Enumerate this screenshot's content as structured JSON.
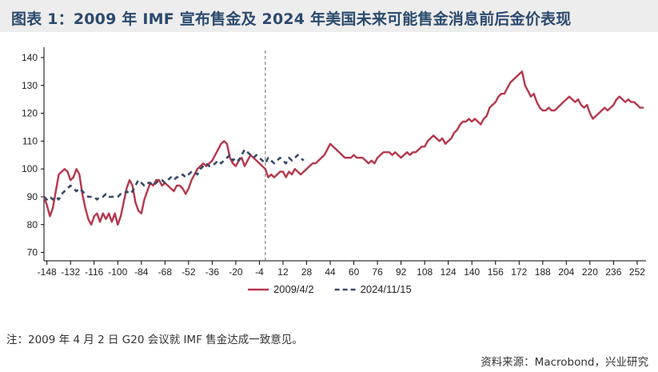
{
  "header": {
    "title": "图表 1：2009 年 IMF 宣布售金及 2024 年美国未来可能售金消息前后金价表现"
  },
  "chart_data": {
    "type": "line",
    "title": "图表 1：2009 年 IMF 宣布售金及 2024 年美国未来可能售金消息前后金价表现",
    "xlabel": "",
    "ylabel": "",
    "xlim": [
      -150,
      258
    ],
    "ylim": [
      67,
      142
    ],
    "x_ticks": [
      -148,
      -132,
      -116,
      -100,
      -84,
      -68,
      -52,
      -36,
      -20,
      -4,
      12,
      28,
      44,
      60,
      76,
      92,
      108,
      124,
      140,
      156,
      172,
      188,
      204,
      220,
      236,
      252
    ],
    "y_ticks": [
      70,
      80,
      90,
      100,
      110,
      120,
      130,
      140
    ],
    "event_line_x": 0,
    "legend_position": "bottom",
    "grid": false,
    "series": [
      {
        "name": "2009/4/2",
        "color": "#b5374b",
        "style": "solid",
        "points": [
          [
            -150,
            90
          ],
          [
            -148,
            87
          ],
          [
            -146,
            83
          ],
          [
            -144,
            86
          ],
          [
            -142,
            92
          ],
          [
            -140,
            98
          ],
          [
            -138,
            99
          ],
          [
            -136,
            100
          ],
          [
            -134,
            99
          ],
          [
            -132,
            96
          ],
          [
            -130,
            97
          ],
          [
            -128,
            100
          ],
          [
            -126,
            98
          ],
          [
            -124,
            91
          ],
          [
            -122,
            86
          ],
          [
            -120,
            82
          ],
          [
            -118,
            80
          ],
          [
            -116,
            83
          ],
          [
            -114,
            84
          ],
          [
            -112,
            81
          ],
          [
            -110,
            84
          ],
          [
            -108,
            82
          ],
          [
            -106,
            84
          ],
          [
            -104,
            81
          ],
          [
            -102,
            84
          ],
          [
            -100,
            80
          ],
          [
            -98,
            83
          ],
          [
            -96,
            88
          ],
          [
            -94,
            93
          ],
          [
            -92,
            96
          ],
          [
            -90,
            94
          ],
          [
            -88,
            88
          ],
          [
            -86,
            85
          ],
          [
            -84,
            84
          ],
          [
            -82,
            89
          ],
          [
            -80,
            92
          ],
          [
            -78,
            95
          ],
          [
            -76,
            94
          ],
          [
            -74,
            96
          ],
          [
            -72,
            96
          ],
          [
            -70,
            94
          ],
          [
            -68,
            95
          ],
          [
            -66,
            94
          ],
          [
            -64,
            93
          ],
          [
            -62,
            92
          ],
          [
            -60,
            94
          ],
          [
            -58,
            94
          ],
          [
            -56,
            93
          ],
          [
            -54,
            91
          ],
          [
            -52,
            93
          ],
          [
            -50,
            96
          ],
          [
            -48,
            98
          ],
          [
            -46,
            100
          ],
          [
            -44,
            101
          ],
          [
            -42,
            102
          ],
          [
            -40,
            101
          ],
          [
            -38,
            102
          ],
          [
            -36,
            103
          ],
          [
            -34,
            105
          ],
          [
            -32,
            107
          ],
          [
            -30,
            109
          ],
          [
            -28,
            110
          ],
          [
            -26,
            109
          ],
          [
            -24,
            104
          ],
          [
            -22,
            102
          ],
          [
            -20,
            101
          ],
          [
            -18,
            103
          ],
          [
            -16,
            104
          ],
          [
            -14,
            101
          ],
          [
            -12,
            103
          ],
          [
            -10,
            105
          ],
          [
            -8,
            104
          ],
          [
            -6,
            103
          ],
          [
            -4,
            102
          ],
          [
            -2,
            101
          ],
          [
            0,
            100
          ],
          [
            2,
            97
          ],
          [
            4,
            98
          ],
          [
            6,
            97
          ],
          [
            8,
            98
          ],
          [
            10,
            99
          ],
          [
            12,
            99
          ],
          [
            14,
            97
          ],
          [
            16,
            99
          ],
          [
            18,
            98
          ],
          [
            20,
            100
          ],
          [
            22,
            99
          ],
          [
            24,
            98
          ],
          [
            26,
            99
          ],
          [
            28,
            100
          ],
          [
            30,
            101
          ],
          [
            32,
            102
          ],
          [
            34,
            102
          ],
          [
            36,
            103
          ],
          [
            38,
            104
          ],
          [
            40,
            105
          ],
          [
            42,
            107
          ],
          [
            44,
            109
          ],
          [
            46,
            108
          ],
          [
            48,
            107
          ],
          [
            50,
            106
          ],
          [
            52,
            105
          ],
          [
            54,
            104
          ],
          [
            56,
            104
          ],
          [
            58,
            104
          ],
          [
            60,
            105
          ],
          [
            62,
            104
          ],
          [
            64,
            104
          ],
          [
            66,
            104
          ],
          [
            68,
            103
          ],
          [
            70,
            102
          ],
          [
            72,
            103
          ],
          [
            74,
            102
          ],
          [
            76,
            104
          ],
          [
            78,
            105
          ],
          [
            80,
            106
          ],
          [
            82,
            106
          ],
          [
            84,
            106
          ],
          [
            86,
            105
          ],
          [
            88,
            106
          ],
          [
            90,
            105
          ],
          [
            92,
            104
          ],
          [
            94,
            105
          ],
          [
            96,
            106
          ],
          [
            98,
            105
          ],
          [
            100,
            106
          ],
          [
            102,
            106
          ],
          [
            104,
            107
          ],
          [
            106,
            108
          ],
          [
            108,
            108
          ],
          [
            110,
            110
          ],
          [
            112,
            111
          ],
          [
            114,
            112
          ],
          [
            116,
            111
          ],
          [
            118,
            110
          ],
          [
            120,
            111
          ],
          [
            122,
            109
          ],
          [
            124,
            110
          ],
          [
            126,
            111
          ],
          [
            128,
            113
          ],
          [
            130,
            114
          ],
          [
            132,
            116
          ],
          [
            134,
            117
          ],
          [
            136,
            117
          ],
          [
            138,
            118
          ],
          [
            140,
            117
          ],
          [
            142,
            118
          ],
          [
            144,
            117
          ],
          [
            146,
            116
          ],
          [
            148,
            118
          ],
          [
            150,
            119
          ],
          [
            152,
            122
          ],
          [
            154,
            123
          ],
          [
            156,
            124
          ],
          [
            158,
            126
          ],
          [
            160,
            127
          ],
          [
            162,
            127
          ],
          [
            164,
            129
          ],
          [
            166,
            131
          ],
          [
            168,
            132
          ],
          [
            170,
            133
          ],
          [
            172,
            134
          ],
          [
            174,
            135
          ],
          [
            176,
            130
          ],
          [
            178,
            128
          ],
          [
            180,
            126
          ],
          [
            182,
            127
          ],
          [
            184,
            124
          ],
          [
            186,
            122
          ],
          [
            188,
            121
          ],
          [
            190,
            121
          ],
          [
            192,
            122
          ],
          [
            194,
            121
          ],
          [
            196,
            121
          ],
          [
            198,
            122
          ],
          [
            200,
            123
          ],
          [
            202,
            124
          ],
          [
            204,
            125
          ],
          [
            206,
            126
          ],
          [
            208,
            125
          ],
          [
            210,
            124
          ],
          [
            212,
            125
          ],
          [
            214,
            123
          ],
          [
            216,
            122
          ],
          [
            218,
            123
          ],
          [
            220,
            120
          ],
          [
            222,
            118
          ],
          [
            224,
            119
          ],
          [
            226,
            120
          ],
          [
            228,
            121
          ],
          [
            230,
            122
          ],
          [
            232,
            121
          ],
          [
            234,
            122
          ],
          [
            236,
            123
          ],
          [
            238,
            125
          ],
          [
            240,
            126
          ],
          [
            242,
            125
          ],
          [
            244,
            124
          ],
          [
            246,
            125
          ],
          [
            248,
            124
          ],
          [
            250,
            124
          ],
          [
            252,
            123
          ],
          [
            254,
            122
          ],
          [
            256,
            122
          ]
        ]
      },
      {
        "name": "2024/11/15",
        "color": "#3b4a6b",
        "style": "dashed",
        "points": [
          [
            -150,
            90
          ],
          [
            -148,
            89
          ],
          [
            -146,
            90
          ],
          [
            -144,
            89
          ],
          [
            -142,
            90
          ],
          [
            -140,
            89
          ],
          [
            -138,
            91
          ],
          [
            -136,
            92
          ],
          [
            -134,
            93
          ],
          [
            -132,
            94
          ],
          [
            -130,
            93
          ],
          [
            -128,
            92
          ],
          [
            -126,
            93
          ],
          [
            -124,
            92
          ],
          [
            -122,
            91
          ],
          [
            -120,
            90
          ],
          [
            -118,
            90
          ],
          [
            -116,
            90
          ],
          [
            -114,
            89
          ],
          [
            -112,
            90
          ],
          [
            -110,
            90
          ],
          [
            -108,
            91
          ],
          [
            -106,
            90
          ],
          [
            -104,
            90
          ],
          [
            -102,
            90
          ],
          [
            -100,
            90
          ],
          [
            -98,
            91
          ],
          [
            -96,
            91
          ],
          [
            -94,
            92
          ],
          [
            -92,
            91
          ],
          [
            -90,
            92
          ],
          [
            -88,
            94
          ],
          [
            -86,
            96
          ],
          [
            -84,
            95
          ],
          [
            -82,
            94
          ],
          [
            -80,
            95
          ],
          [
            -78,
            95
          ],
          [
            -76,
            94
          ],
          [
            -74,
            95
          ],
          [
            -72,
            96
          ],
          [
            -70,
            96
          ],
          [
            -68,
            95
          ],
          [
            -66,
            96
          ],
          [
            -64,
            97
          ],
          [
            -62,
            96
          ],
          [
            -60,
            97
          ],
          [
            -58,
            97
          ],
          [
            -56,
            98
          ],
          [
            -54,
            97
          ],
          [
            -52,
            98
          ],
          [
            -50,
            99
          ],
          [
            -48,
            99
          ],
          [
            -46,
            98
          ],
          [
            -44,
            100
          ],
          [
            -42,
            101
          ],
          [
            -40,
            102
          ],
          [
            -38,
            101
          ],
          [
            -36,
            101
          ],
          [
            -34,
            102
          ],
          [
            -32,
            103
          ],
          [
            -30,
            102
          ],
          [
            -28,
            103
          ],
          [
            -26,
            104
          ],
          [
            -24,
            105
          ],
          [
            -22,
            103
          ],
          [
            -20,
            104
          ],
          [
            -18,
            103
          ],
          [
            -16,
            105
          ],
          [
            -14,
            107
          ],
          [
            -12,
            106
          ],
          [
            -10,
            105
          ],
          [
            -8,
            104
          ],
          [
            -6,
            105
          ],
          [
            -4,
            104
          ],
          [
            -2,
            103
          ],
          [
            0,
            102
          ],
          [
            2,
            104
          ],
          [
            4,
            103
          ],
          [
            6,
            102
          ],
          [
            8,
            103
          ],
          [
            10,
            104
          ],
          [
            12,
            103
          ],
          [
            14,
            102
          ],
          [
            16,
            104
          ],
          [
            18,
            103
          ],
          [
            20,
            104
          ],
          [
            22,
            105
          ],
          [
            24,
            104
          ],
          [
            26,
            103
          ]
        ]
      }
    ]
  },
  "footer": {
    "note": "注：2009 年 4 月 2 日 G20 会议就 IMF 售金达成一致意见。",
    "source": "资料来源：Macrobond，兴业研究"
  }
}
